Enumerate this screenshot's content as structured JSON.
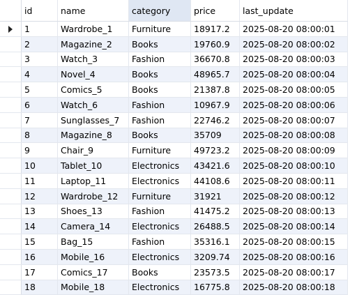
{
  "columns": [
    "id",
    "name",
    "category",
    "price",
    "last_update"
  ],
  "rows": [
    {
      "id": "1",
      "name": "Wardrobe_1",
      "category": "Furniture",
      "price": "18917.2",
      "last_update": "2025-08-20 08:00:01"
    },
    {
      "id": "2",
      "name": "Magazine_2",
      "category": "Books",
      "price": "19760.9",
      "last_update": "2025-08-20 08:00:02"
    },
    {
      "id": "3",
      "name": "Watch_3",
      "category": "Fashion",
      "price": "36670.8",
      "last_update": "2025-08-20 08:00:03"
    },
    {
      "id": "4",
      "name": "Novel_4",
      "category": "Books",
      "price": "48965.7",
      "last_update": "2025-08-20 08:00:04"
    },
    {
      "id": "5",
      "name": "Comics_5",
      "category": "Books",
      "price": "21387.8",
      "last_update": "2025-08-20 08:00:05"
    },
    {
      "id": "6",
      "name": "Watch_6",
      "category": "Fashion",
      "price": "10967.9",
      "last_update": "2025-08-20 08:00:06"
    },
    {
      "id": "7",
      "name": "Sunglasses_7",
      "category": "Fashion",
      "price": "22746.2",
      "last_update": "2025-08-20 08:00:07"
    },
    {
      "id": "8",
      "name": "Magazine_8",
      "category": "Books",
      "price": "35709",
      "last_update": "2025-08-20 08:00:08"
    },
    {
      "id": "9",
      "name": "Chair_9",
      "category": "Furniture",
      "price": "49723.2",
      "last_update": "2025-08-20 08:00:09"
    },
    {
      "id": "10",
      "name": "Tablet_10",
      "category": "Electronics",
      "price": "43421.6",
      "last_update": "2025-08-20 08:00:10"
    },
    {
      "id": "11",
      "name": "Laptop_11",
      "category": "Electronics",
      "price": "44108.6",
      "last_update": "2025-08-20 08:00:11"
    },
    {
      "id": "12",
      "name": "Wardrobe_12",
      "category": "Furniture",
      "price": "31921",
      "last_update": "2025-08-20 08:00:12"
    },
    {
      "id": "13",
      "name": "Shoes_13",
      "category": "Fashion",
      "price": "41475.2",
      "last_update": "2025-08-20 08:00:13"
    },
    {
      "id": "14",
      "name": "Camera_14",
      "category": "Electronics",
      "price": "26488.5",
      "last_update": "2025-08-20 08:00:14"
    },
    {
      "id": "15",
      "name": "Bag_15",
      "category": "Fashion",
      "price": "35316.1",
      "last_update": "2025-08-20 08:00:15"
    },
    {
      "id": "16",
      "name": "Mobile_16",
      "category": "Electronics",
      "price": "3209.74",
      "last_update": "2025-08-20 08:00:16"
    },
    {
      "id": "17",
      "name": "Comics_17",
      "category": "Books",
      "price": "23573.5",
      "last_update": "2025-08-20 08:00:17"
    },
    {
      "id": "18",
      "name": "Mobile_18",
      "category": "Electronics",
      "price": "16775.8",
      "last_update": "2025-08-20 08:00:18"
    }
  ],
  "selected_row_index": 0,
  "highlighted_column": "category",
  "colors": {
    "alt_row": "#eef2fa",
    "header_highlight": "#dfe7f3",
    "grid_line": "#e3e7ee"
  },
  "icons": {
    "row_marker": "current-row-arrow-icon"
  }
}
